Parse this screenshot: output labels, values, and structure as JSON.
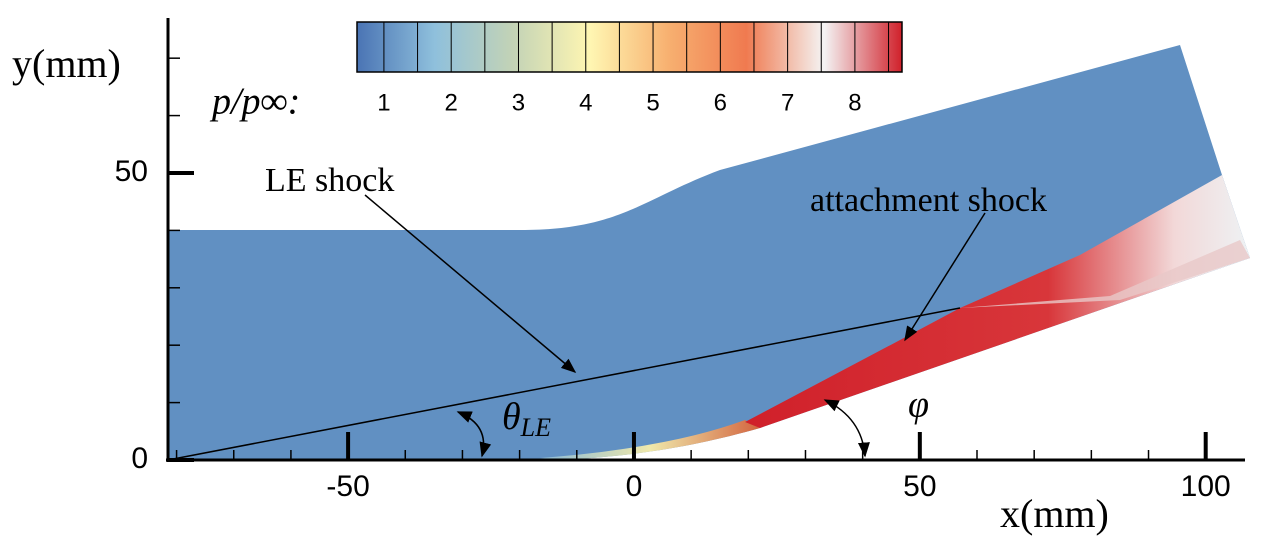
{
  "chart_data": {
    "type": "contour",
    "xlabel": "x(mm)",
    "ylabel": "y(mm)",
    "xlim": [
      -81.5,
      106
    ],
    "ylim": [
      0,
      77
    ],
    "xticks": [
      -50,
      0,
      50,
      100
    ],
    "yticks": [
      0,
      50
    ],
    "xminor_ticks": [
      -80,
      -70,
      -60,
      -40,
      -30,
      -20,
      -10,
      10,
      20,
      30,
      40,
      60,
      70,
      80,
      90
    ],
    "yminor_ticks": [
      10,
      20,
      30,
      40,
      60,
      70
    ],
    "colorbar": {
      "label": "p/p∞:",
      "lim": [
        0.6,
        8.7
      ],
      "ticks": [
        1,
        2,
        3,
        4,
        5,
        6,
        7,
        8
      ],
      "levels": [
        1,
        1.5,
        2,
        2.5,
        3,
        3.5,
        4,
        4.5,
        5,
        5.5,
        6,
        6.5,
        7,
        7.5,
        8,
        8.5
      ],
      "colors": [
        "#4a74b4",
        "#8fc0dc",
        "#c3d3b6",
        "#fff6b2",
        "#f7b070",
        "#f07a50",
        "#f4f4f4",
        "#d0202a"
      ]
    },
    "annotations": [
      {
        "text": "LE shock"
      },
      {
        "text": "attachment shock"
      }
    ],
    "angle_labels": [
      {
        "symbol": "θ",
        "subscript": "LE"
      },
      {
        "symbol": "φ"
      }
    ]
  }
}
